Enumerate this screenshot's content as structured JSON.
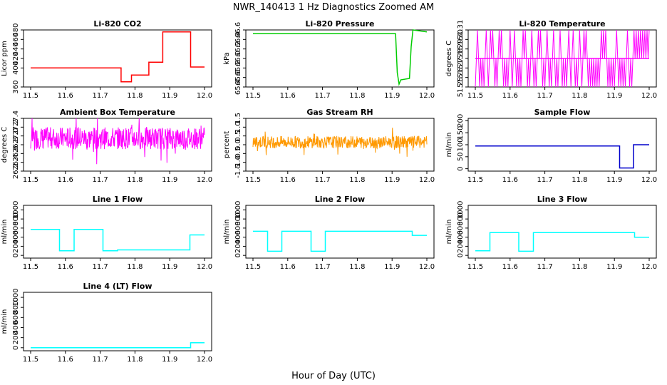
{
  "figure": {
    "title": "NWR_140413  1 Hz Diagnostics Zoomed AM",
    "xlabel": "Hour of Day (UTC)"
  },
  "chart_data": [
    {
      "type": "line",
      "title": "Li-820 CO2",
      "ylabel": "Licor ppm",
      "color": "#ff0000",
      "xlim": [
        11.5,
        12.0
      ],
      "ylim": [
        360,
        480
      ],
      "xticks": [
        "11.5",
        "11.6",
        "11.7",
        "11.8",
        "11.9",
        "12.0"
      ],
      "yticks": [
        "360",
        "400",
        "420",
        "440",
        "460",
        "480"
      ],
      "series": [
        {
          "x": [
            11.5,
            11.76,
            11.76,
            11.79,
            11.79,
            11.84,
            11.84,
            11.88,
            11.88,
            11.96,
            11.96,
            12.0
          ],
          "y": [
            400,
            400,
            371,
            371,
            385,
            385,
            412,
            412,
            476,
            476,
            402,
            402
          ]
        }
      ]
    },
    {
      "type": "line",
      "title": "Li-820 Pressure",
      "ylabel": "kPa",
      "color": "#00cc00",
      "xlim": [
        11.5,
        12.0
      ],
      "ylim": [
        65.4,
        66.6
      ],
      "xticks": [
        "11.5",
        "11.6",
        "11.7",
        "11.8",
        "11.9",
        "12.0"
      ],
      "yticks": [
        "65.4",
        "65.6",
        "65.8",
        "66.0",
        "66.2",
        "66.4",
        "66.6"
      ],
      "series": [
        {
          "x": [
            11.5,
            11.91,
            11.915,
            11.92,
            11.925,
            11.95,
            11.955,
            11.96,
            12.0
          ],
          "y": [
            66.52,
            66.52,
            65.7,
            65.46,
            65.55,
            65.58,
            66.25,
            66.6,
            66.56
          ]
        }
      ]
    },
    {
      "type": "line",
      "title": "Li-820 Temperature",
      "ylabel": "degrees C",
      "color": "#ff00ff",
      "xlim": [
        11.5,
        12.0
      ],
      "ylim": [
        51.25,
        51.31
      ],
      "xticks": [
        "11.5",
        "11.6",
        "11.7",
        "11.8",
        "11.9",
        "12.0"
      ],
      "yticks": [
        "51.25",
        "51.26",
        "51.27",
        "51.28",
        "51.29",
        "51.30",
        "51.31"
      ],
      "levels": [
        51.25,
        51.28,
        51.31
      ],
      "noise": "toggle",
      "base": 51.28,
      "series": [
        {
          "x": [
            11.5,
            12.0
          ],
          "y": [
            51.28,
            51.28
          ]
        }
      ]
    },
    {
      "type": "line",
      "title": "Ambient Box Temperature",
      "ylabel": "degrees C",
      "color": "#ff00ff",
      "xlim": [
        11.5,
        12.0
      ],
      "ylim": [
        26.2,
        27.4
      ],
      "xticks": [
        "11.5",
        "11.6",
        "11.7",
        "11.8",
        "11.9",
        "12.0"
      ],
      "yticks": [
        "26.2",
        "26.4",
        "26.6",
        "26.8",
        "27.0",
        "27.2",
        "27.4"
      ],
      "noise": "jitter",
      "base": 26.95,
      "amplitude": 0.25,
      "series": [
        {
          "x": [
            11.5,
            12.0
          ],
          "y": [
            26.95,
            26.95
          ]
        }
      ]
    },
    {
      "type": "line",
      "title": "Gas Stream RH",
      "ylabel": "percent",
      "color": "#ff9900",
      "xlim": [
        11.5,
        12.0
      ],
      "ylim": [
        -1.5,
        1.5
      ],
      "xticks": [
        "11.5",
        "11.6",
        "11.7",
        "11.8",
        "11.9",
        "12.0"
      ],
      "yticks": [
        "-1.5",
        "-1.0",
        "-0.5",
        "0.0",
        "0.5",
        "1.0",
        "1.5"
      ],
      "noise": "jitter",
      "base": 0.15,
      "amplitude": 0.35,
      "series": [
        {
          "x": [
            11.5,
            12.0
          ],
          "y": [
            0.15,
            0.15
          ]
        }
      ]
    },
    {
      "type": "line",
      "title": "Sample Flow",
      "ylabel": "ml/min",
      "color": "#0000cc",
      "xlim": [
        11.5,
        12.0
      ],
      "ylim": [
        -10,
        210
      ],
      "xticks": [
        "11.5",
        "11.6",
        "11.7",
        "11.8",
        "11.9",
        "12.0"
      ],
      "yticks": [
        "0",
        "50",
        "100",
        "150",
        "200"
      ],
      "series": [
        {
          "x": [
            11.5,
            11.915,
            11.915,
            11.955,
            11.955,
            12.0
          ],
          "y": [
            95,
            95,
            3,
            3,
            100,
            100
          ]
        }
      ]
    },
    {
      "type": "line",
      "title": "Line 1 Flow",
      "ylabel": "ml/min",
      "color": "#00ffff",
      "xlim": [
        11.5,
        12.0
      ],
      "ylim": [
        -60,
        1100
      ],
      "xticks": [
        "11.5",
        "11.6",
        "11.7",
        "11.8",
        "11.9",
        "12.0"
      ],
      "yticks": [
        "0",
        "200",
        "400",
        "600",
        "800",
        "1000"
      ],
      "series": [
        {
          "x": [
            11.5,
            11.583,
            11.583,
            11.625,
            11.625,
            11.708,
            11.708,
            11.75,
            11.75,
            11.958,
            11.958,
            12.0
          ],
          "y": [
            570,
            570,
            100,
            100,
            570,
            570,
            100,
            100,
            120,
            120,
            450,
            450
          ]
        }
      ]
    },
    {
      "type": "line",
      "title": "Line 2 Flow",
      "ylabel": "ml/min",
      "color": "#00ffff",
      "xlim": [
        11.5,
        12.0
      ],
      "ylim": [
        -60,
        1100
      ],
      "xticks": [
        "11.5",
        "11.6",
        "11.7",
        "11.8",
        "11.9",
        "12.0"
      ],
      "yticks": [
        "0",
        "200",
        "400",
        "600",
        "800",
        "1000"
      ],
      "series": [
        {
          "x": [
            11.5,
            11.542,
            11.542,
            11.583,
            11.583,
            11.667,
            11.667,
            11.708,
            11.708,
            11.958,
            11.958,
            12.0
          ],
          "y": [
            530,
            530,
            90,
            90,
            530,
            530,
            90,
            90,
            530,
            530,
            440,
            440
          ]
        }
      ]
    },
    {
      "type": "line",
      "title": "Line 3 Flow",
      "ylabel": "ml/min",
      "color": "#00ffff",
      "xlim": [
        11.5,
        12.0
      ],
      "ylim": [
        -60,
        1100
      ],
      "xticks": [
        "11.5",
        "11.6",
        "11.7",
        "11.8",
        "11.9",
        "12.0"
      ],
      "yticks": [
        "0",
        "200",
        "400",
        "600",
        "800",
        "1000"
      ],
      "series": [
        {
          "x": [
            11.5,
            11.542,
            11.542,
            11.625,
            11.625,
            11.667,
            11.667,
            11.958,
            11.958,
            12.0
          ],
          "y": [
            100,
            100,
            500,
            500,
            90,
            90,
            500,
            500,
            400,
            400
          ]
        }
      ]
    },
    {
      "type": "line",
      "title": "Line 4 (LT) Flow",
      "ylabel": "ml/min",
      "color": "#00ffff",
      "xlim": [
        11.5,
        12.0
      ],
      "ylim": [
        -60,
        1100
      ],
      "xticks": [
        "11.5",
        "11.6",
        "11.7",
        "11.8",
        "11.9",
        "12.0"
      ],
      "yticks": [
        "0",
        "200",
        "400",
        "600",
        "800",
        "1000"
      ],
      "series": [
        {
          "x": [
            11.5,
            11.96,
            11.96,
            12.0
          ],
          "y": [
            0,
            0,
            100,
            100
          ]
        }
      ]
    }
  ]
}
